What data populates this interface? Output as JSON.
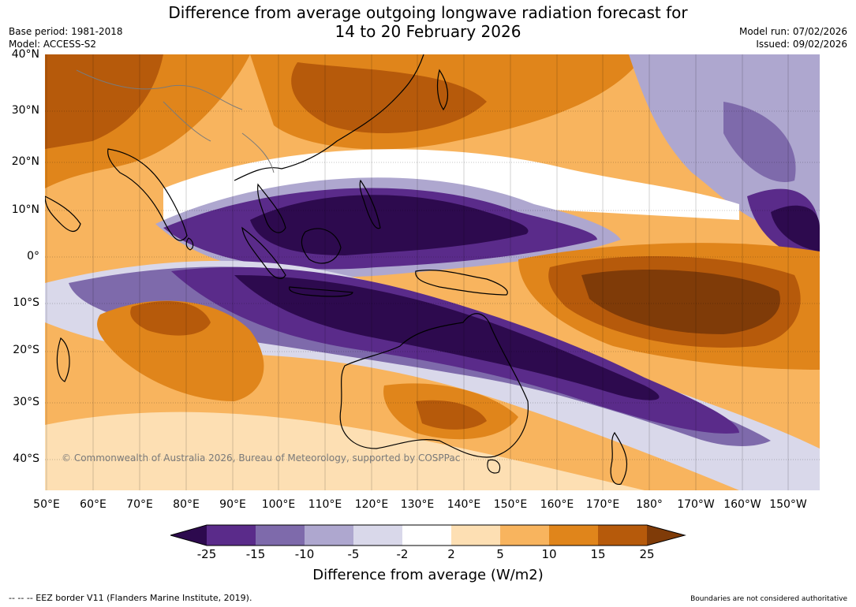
{
  "title": {
    "line1": "Difference from average outgoing longwave radiation forecast for",
    "line2": "14 to 20 February 2026"
  },
  "meta": {
    "base_period": "Base period: 1981-2018",
    "model": "Model: ACCESS-S2",
    "model_run": "Model run: 07/02/2026",
    "issued": "Issued: 09/02/2026"
  },
  "axes": {
    "lat_labels": [
      "40°N",
      "30°N",
      "20°N",
      "10°N",
      "0°",
      "10°S",
      "20°S",
      "30°S",
      "40°S"
    ],
    "lon_labels": [
      "50°E",
      "60°E",
      "70°E",
      "80°E",
      "90°E",
      "100°E",
      "110°E",
      "120°E",
      "130°E",
      "140°E",
      "150°E",
      "160°E",
      "170°E",
      "180°",
      "170°W",
      "160°W",
      "150°W"
    ]
  },
  "copyright": "© Commonwealth of Australia 2026, Bureau of Meteorology, supported by COSPPac",
  "colorbar": {
    "ticks": [
      "-25",
      "-15",
      "-10",
      "-5",
      "-2",
      "2",
      "5",
      "10",
      "15",
      "25"
    ],
    "colors": [
      "#2d0a4e",
      "#5a2b8a",
      "#7e6aab",
      "#aea7cf",
      "#d9d8ea",
      "#ffffff",
      "#fddfb3",
      "#f8b45e",
      "#e0851b",
      "#b65a0b",
      "#7f3b08"
    ],
    "title": "Difference from average (W/m2)"
  },
  "footer": {
    "eez": "--  --  -- EEZ border V11 (Flanders Marine Institute, 2019).",
    "boundaries": "Boundaries are not considered authoritative"
  }
}
